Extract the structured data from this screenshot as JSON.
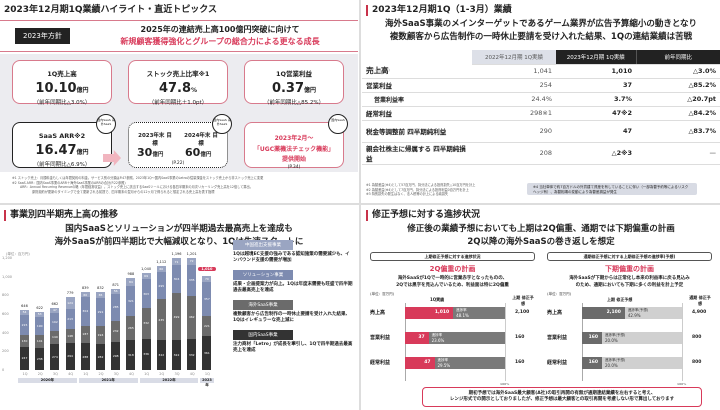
{
  "q1": {
    "title": "2023年12月期1Q業績ハイライト・直近トピックス",
    "policy_badge": "2023年方針",
    "policy_line1": "2025年の連結売上高100億円突破に向けて",
    "policy_line2": "新規顧客獲得強化とグループの総合力による更なる成長",
    "cards": [
      {
        "title": "1Q売上高",
        "value": "10.10",
        "unit": "億円",
        "sub": "（前年同期比△3.0%）"
      },
      {
        "title": "ストック売上比率※1",
        "value": "47.8",
        "unit": "%",
        "sub": "（前年同期比＋1.0pt）"
      },
      {
        "title": "1Q営業利益",
        "value": "0.37",
        "unit": "億円",
        "sub": "（前年同期比△85.2%）"
      },
      {
        "title": "SaaS ARR※2",
        "value": "16.47",
        "unit": "億円",
        "sub": "（前年同期比△6.9%）"
      }
    ],
    "cloud_labels": [
      "国内SaaS 海外SaaS",
      "国内SaaS 海外SaaS",
      "国内SaaS"
    ],
    "target": {
      "y2023_label": "2023年末 目標",
      "y2023_value": "30",
      "y2024_label": "2024年末 目標",
      "y2024_value": "60",
      "unit": "億円",
      "page": "(P.22)"
    },
    "topic": {
      "date": "2023年2月～",
      "name": "「UGC薬機法チェック機能」",
      "status": "提供開始",
      "page": "(P.34)"
    },
    "footnotes": [
      "※1 ストック売上：月額料金もしくは年間契約の料金。サービス別の分類はP.47参照。2023年1Q～国内SaaS事業のLetroの従量課金をストック売上から非ストック売上に変更",
      "※2 SaaS ARR：国内SaaS事業のARR＋海外SaaS事業のARRの合計(P.22参照)",
      "ARR：Annual Recurring Revenueの略（年間経常収益）。ストック売上に該当するSaaSツールにおける各四半期末の月次リカーリング売上高を12倍して算出。",
      "原則契約が更新のタイミングで全て更新される前提で、四半期末の翌月からの12ヶ月で得られると想定される売上高を表す指標"
    ]
  },
  "q2": {
    "title": "2023年12月期1Q（1-3月）業績",
    "headline1": "海外SaaS事業のメインターゲットであるゲーム業界が広告予算縮小の動きとなり",
    "headline2": "複数顧客から広告制作の一時休止要請を受け入れた結果、1Qの連結業績は苦戦",
    "unit": "(単位：百万円)",
    "columns": [
      "2022年12月期 1Q実績",
      "2023年12月期 1Q実績",
      "前年同期比"
    ],
    "rows": [
      {
        "label": "売上高",
        "prev": "1,041",
        "curr": "1,010",
        "yoy": "△3.0%"
      },
      {
        "label": "営業利益",
        "prev": "254",
        "curr": "37",
        "yoy": "△85.2%"
      },
      {
        "label": "営業利益率",
        "prev": "24.4%",
        "curr": "3.7%",
        "yoy": "△20.7pt"
      },
      {
        "label": "経常利益",
        "prev": "298※1",
        "curr": "47※2",
        "yoy": "△84.2%"
      },
      {
        "label": "税金等調整前 四半期純利益",
        "prev": "290",
        "curr": "47",
        "yoy": "△83.7%"
      },
      {
        "label": "親会社株主に帰属する 四半期純損益",
        "prev": "208",
        "curr": "△2※3",
        "yoy": "—"
      }
    ],
    "footnotes": [
      "※1 為替差益(※4)として57百万円、持分法による投資損失△10百万円を計上",
      "※2 為替差益(※4)として7百万円、持分法による投資利益0百万円を計上",
      "※3 特別損失の発生はなく、法人税等の計上による純損失"
    ],
    "note4": "※4 当社単体で約7百万ドルの外貨建て資産を有していることに伴い（一部為替予約等によるリスクヘッジ有）、為替相場の変動により為替差損益が発生"
  },
  "q3": {
    "title": "事業別四半期売上高の推移",
    "headline1": "国内SaaSとソリューションが四半期過去最高売上を達成も",
    "headline2": "海外SaaSが前四半期比で大幅減収となり、1Qは失速スタートに",
    "unit": "(単位：百万円)",
    "legend": [
      {
        "name": "中国進出支援事業",
        "color": "#9aa5c2",
        "text": "1Qは越境EC支援の強みである認知施策の需要減少も、インバウンド支援の需要が増加"
      },
      {
        "name": "ソリューション事業",
        "color": "#7d8bb0",
        "text": "成果・企画提案力が向上。1Qは年度末需要も旺盛で四半期過去最高売上を達成"
      },
      {
        "name": "海外SaaS事業",
        "color": "#6b6b6b",
        "text": "複数顧客から広告制作の一時休止要請を受け入れた結果、1Qはイレギュラーな売上減に"
      },
      {
        "name": "国内SaaS事業",
        "color": "#333333",
        "text": "注力商材「Letro」が成長を牽引し、1Qで四半期過去最高売上を達成"
      }
    ],
    "highlight_total": "1,010"
  },
  "chart_data": {
    "type": "bar",
    "stacked": true,
    "title": "事業別四半期売上高の推移",
    "ylabel": "(単位：百万円)",
    "ylim": [
      0,
      1200
    ],
    "yticks": [
      0,
      200,
      400,
      600,
      800,
      1000,
      1200
    ],
    "categories": [
      "2020年1Q",
      "2020年2Q",
      "2020年3Q",
      "2020年4Q",
      "2021年1Q",
      "2021年2Q",
      "2021年3Q",
      "2021年4Q",
      "2022年1Q",
      "2022年2Q",
      "2022年3Q",
      "2022年4Q",
      "2023年1Q"
    ],
    "quarter_labels": [
      "1Q",
      "2Q",
      "3Q",
      "4Q",
      "1Q",
      "2Q",
      "3Q",
      "4Q",
      "1Q",
      "2Q",
      "3Q",
      "4Q",
      "1Q"
    ],
    "year_groups": [
      {
        "label": "2020年",
        "span": 4
      },
      {
        "label": "2021年",
        "span": 4
      },
      {
        "label": "2022年",
        "span": 4
      },
      {
        "label": "2023年",
        "span": 1
      }
    ],
    "totals": [
      646,
      622,
      662,
      779,
      839,
      832,
      871,
      988,
      1040,
      1112,
      1196,
      1201,
      1010
    ],
    "series": [
      {
        "name": "国内SaaS事業",
        "color": "#333333",
        "values": [
          247,
          238,
          274,
          294,
          288,
          282,
          298,
          318,
          336,
          322,
          322,
          332,
          361
        ]
      },
      {
        "name": "海外SaaS事業",
        "color": "#6b6b6b",
        "values": [
          130,
          141,
          149,
          148,
          187,
          194,
          232,
          265,
          332,
          435,
          499,
          462,
          221
        ]
      },
      {
        "name": "ソリューション事業",
        "color": "#7d8bb0",
        "values": [
          215,
          190,
          192,
          213,
          304,
          291,
          285,
          321,
          303,
          295,
          304,
          335,
          357
        ]
      },
      {
        "name": "中国進出支援事業",
        "color": "#9aa5c2",
        "values": [
          54,
          53,
          47,
          124,
          60,
          65,
          56,
          84,
          69,
          60,
          71,
          72,
          70
        ]
      }
    ]
  },
  "q4": {
    "title": "修正予想に対する進捗状況",
    "headline1": "修正後の業績予想においても上期は2Q偏重、通期では下期偏重の計画",
    "headline2": "2Q以降の海外SaaSの巻き返しを想定",
    "left": {
      "pill": "上期修正予想に対する進捗状況",
      "subtitle": "2Q偏重の計画",
      "desc1": "海外SaaSが1Qで一時的に営業赤字となったものの、",
      "desc2": "2Qでは黒字を見込んでいるため、利益面は特に2Q偏重",
      "unit": "(単位：百万円)",
      "col_actual": "1Q実績",
      "col_forecast": "上期 修正予想",
      "axis_end": "100%",
      "rows": [
        {
          "label": "売上高",
          "actual": "1,010",
          "rate_label": "進捗率",
          "rate": "48.1%",
          "forecast": "2,100",
          "pct": 48.1
        },
        {
          "label": "営業利益",
          "actual": "37",
          "rate_label": "進捗率",
          "rate": "23.6%",
          "forecast": "160",
          "pct": 23.6
        },
        {
          "label": "経常利益",
          "actual": "47",
          "rate_label": "進捗率",
          "rate": "29.5%",
          "forecast": "160",
          "pct": 29.5
        }
      ]
    },
    "right": {
      "pill": "通期修正予想に対する上期修正予想の進捗率(予想)",
      "subtitle": "下期偏重の計画",
      "desc1": "海外SaaSが下期からは正常化し本来の利益率に戻る見込み",
      "desc2": "のため、通期においても下期に多くの利益を計上予定",
      "unit": "(単位：百万円)",
      "col_actual": "上期 修正予想",
      "col_forecast": "通期 修正予想",
      "axis_end": "100%",
      "rows": [
        {
          "label": "売上高",
          "actual": "2,100",
          "rate_label": "進捗率(予想)",
          "rate": "42.9%",
          "forecast": "4,900",
          "pct": 42.9
        },
        {
          "label": "営業利益",
          "actual": "160",
          "rate_label": "進捗率(予想)",
          "rate": "20.0%",
          "forecast": "800",
          "pct": 20.0
        },
        {
          "label": "経常利益",
          "actual": "160",
          "rate_label": "進捗率(予想)",
          "rate": "20.0%",
          "forecast": "800",
          "pct": 20.0
        }
      ]
    },
    "callout1": "期初予想では海外SaaS最大顧客(A社)の取引再開の有無が通期連結業績を左右すると考え、",
    "callout2": "レンジ形式での開示としておりましたが、修正予想は最大顧客との取引再開を考慮しない形で算出しております"
  }
}
